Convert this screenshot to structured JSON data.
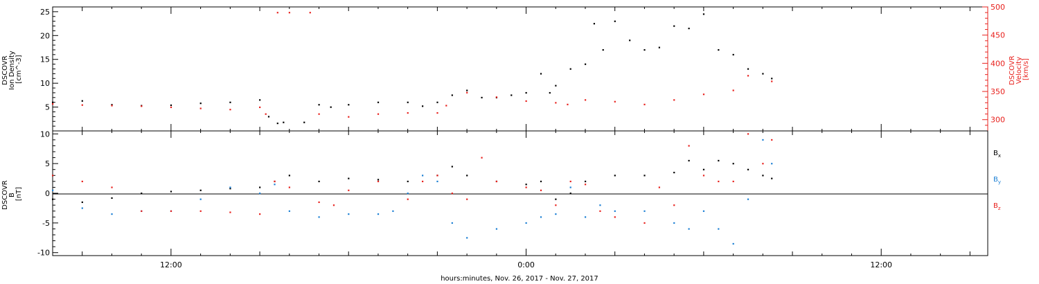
{
  "xlabel": "hours:minutes, Nov. 26, 2017 - Nov. 27, 2017",
  "x_ticks": [
    {
      "hours": 12,
      "label": "12:00"
    },
    {
      "hours": 24,
      "label": "0:00"
    },
    {
      "hours": 36,
      "label": "12:00"
    }
  ],
  "x_range_hours": [
    8.0,
    39.6
  ],
  "colors": {
    "black": "#000000",
    "red": "#e8201c",
    "blue": "#1a7fd4",
    "axis_red": "#e8201c"
  },
  "panel_top": {
    "ylabel_left": [
      "DSCOVR",
      "Ion Density",
      "[cm^-3]"
    ],
    "ylabel_right": [
      "DSCOVR",
      "Velocity",
      "[km/s]"
    ],
    "left_ticks": [
      "25",
      "20",
      "15",
      "10",
      "5"
    ],
    "right_ticks": [
      "500",
      "450",
      "400",
      "350",
      "300"
    ]
  },
  "panel_bottom": {
    "ylabel": [
      "DSCOVR",
      "B",
      "[nT]"
    ],
    "ticks": [
      "10",
      "5",
      "0",
      "-5",
      "-10"
    ],
    "legend": [
      {
        "base": "B",
        "sub": "x",
        "color": "#000000"
      },
      {
        "base": "B",
        "sub": "y",
        "color": "#1a7fd4"
      },
      {
        "base": "B",
        "sub": "z",
        "color": "#e8201c"
      }
    ]
  },
  "chart_data": [
    {
      "type": "scatter",
      "title": "",
      "xlabel": "hours:minutes, Nov. 26, 2017 - Nov. 27, 2017",
      "x_units": "hours since 00:00 Nov. 26, 2017",
      "ylabel": "DSCOVR Ion Density [cm^-3]",
      "ylabel_right": "DSCOVR Velocity [km/s]",
      "ylim": [
        0,
        26
      ],
      "ylim_right": [
        280,
        500
      ],
      "series": [
        {
          "name": "Ion Density",
          "axis": "left",
          "color": "#000000",
          "x": [
            8.0,
            9.0,
            10.0,
            11.0,
            12.0,
            13.0,
            14.0,
            15.0,
            15.3,
            15.6,
            15.8,
            16.5,
            17.0,
            17.4,
            18.0,
            19.0,
            20.0,
            20.5,
            21.0,
            21.5,
            22.0,
            22.5,
            23.0,
            23.5,
            24.0,
            24.5,
            24.8,
            25.0,
            25.5,
            26.0,
            26.3,
            26.6,
            27.0,
            27.5,
            28.0,
            28.5,
            29.0,
            29.5,
            30.0,
            30.5,
            31.0,
            31.5,
            32.0,
            32.3
          ],
          "y": [
            6.0,
            6.3,
            5.5,
            5.3,
            5.4,
            5.8,
            6.0,
            6.5,
            3.0,
            1.6,
            1.8,
            1.8,
            5.5,
            5.0,
            5.5,
            6.0,
            6.0,
            5.2,
            6.0,
            7.5,
            8.5,
            7.0,
            7.0,
            7.5,
            8.0,
            12.0,
            8.0,
            9.5,
            13.0,
            14.0,
            22.5,
            17.0,
            23.0,
            19.0,
            17.0,
            17.5,
            22.0,
            21.5,
            24.5,
            17.0,
            16.0,
            13.0,
            12.0,
            11.0
          ]
        },
        {
          "name": "Velocity",
          "axis": "right",
          "color": "#e8201c",
          "x": [
            8.0,
            9.0,
            10.0,
            11.0,
            12.0,
            13.0,
            14.0,
            15.0,
            15.2,
            15.6,
            16.0,
            16.7,
            17.0,
            18.0,
            19.0,
            20.0,
            21.0,
            21.3,
            22.0,
            23.0,
            24.0,
            25.0,
            25.4,
            26.0,
            27.0,
            28.0,
            29.0,
            30.0,
            31.0,
            31.5,
            32.3
          ],
          "y": [
            328,
            326,
            325,
            324,
            322,
            320,
            318,
            322,
            310,
            490,
            490,
            490,
            310,
            305,
            310,
            312,
            312,
            325,
            348,
            340,
            333,
            330,
            327,
            335,
            332,
            327,
            335,
            345,
            352,
            378,
            368
          ]
        }
      ]
    },
    {
      "type": "scatter",
      "title": "",
      "xlabel": "hours:minutes, Nov. 26, 2017 - Nov. 27, 2017",
      "x_units": "hours since 00:00 Nov. 26, 2017",
      "ylabel": "DSCOVR B [nT]",
      "ylim": [
        -10.5,
        10.5
      ],
      "series": [
        {
          "name": "Bx",
          "color": "#000000",
          "x": [
            8.0,
            9.0,
            10.0,
            11.0,
            12.0,
            13.0,
            14.0,
            15.0,
            15.5,
            16.0,
            17.0,
            18.0,
            19.0,
            20.0,
            21.0,
            21.5,
            22.0,
            23.0,
            24.0,
            24.5,
            25.0,
            25.5,
            26.0,
            27.0,
            28.0,
            29.0,
            29.5,
            30.0,
            30.5,
            31.0,
            31.5,
            32.0,
            32.3
          ],
          "y": [
            -1.0,
            -1.5,
            -0.8,
            0.0,
            0.3,
            0.5,
            0.8,
            1.0,
            2.0,
            3.0,
            2.0,
            2.5,
            2.3,
            2.0,
            3.0,
            4.5,
            3.0,
            2.0,
            1.5,
            2.0,
            -1.0,
            0.0,
            2.0,
            3.0,
            3.0,
            3.5,
            5.5,
            4.0,
            5.5,
            5.0,
            4.0,
            3.0,
            2.5
          ]
        },
        {
          "name": "By",
          "color": "#1a7fd4",
          "x": [
            8.0,
            9.0,
            10.0,
            11.0,
            12.0,
            13.0,
            14.0,
            15.0,
            15.5,
            16.0,
            17.0,
            18.0,
            19.0,
            19.5,
            20.0,
            20.5,
            21.0,
            21.5,
            22.0,
            23.0,
            24.0,
            24.5,
            25.0,
            25.5,
            26.0,
            26.5,
            27.0,
            28.0,
            29.0,
            29.5,
            30.0,
            30.5,
            31.0,
            31.5,
            32.0,
            32.3
          ],
          "y": [
            0.5,
            -2.5,
            -3.5,
            -3.0,
            -3.0,
            -1.0,
            1.0,
            0.0,
            1.5,
            -3.0,
            -4.0,
            -3.5,
            -3.5,
            -3.0,
            0.0,
            3.0,
            2.0,
            -5.0,
            -7.5,
            -6.0,
            -5.0,
            -4.0,
            -3.5,
            1.0,
            -4.0,
            -2.0,
            -3.0,
            -3.0,
            -5.0,
            -6.0,
            -3.0,
            -6.0,
            -8.5,
            -1.0,
            9.0,
            5.0
          ]
        },
        {
          "name": "Bz",
          "color": "#e8201c",
          "x": [
            8.0,
            9.0,
            10.0,
            11.0,
            12.0,
            13.0,
            14.0,
            15.0,
            15.5,
            16.0,
            17.0,
            17.5,
            18.0,
            19.0,
            20.0,
            20.5,
            21.0,
            21.5,
            22.0,
            22.5,
            23.0,
            24.0,
            24.5,
            25.0,
            25.5,
            26.0,
            26.5,
            27.0,
            28.0,
            28.5,
            29.0,
            29.5,
            30.0,
            30.5,
            31.0,
            31.5,
            32.0,
            32.3
          ],
          "y": [
            3.0,
            2.0,
            1.0,
            -3.0,
            -3.0,
            -3.0,
            -3.2,
            -3.5,
            2.0,
            1.0,
            -1.5,
            -2.0,
            0.5,
            2.0,
            -1.0,
            2.0,
            3.0,
            0.0,
            -1.0,
            6.0,
            2.0,
            1.0,
            0.5,
            -2.0,
            2.0,
            1.5,
            -3.0,
            -4.0,
            -5.0,
            1.0,
            -2.0,
            8.0,
            3.0,
            2.0,
            2.0,
            10.0,
            5.0,
            9.0
          ]
        }
      ]
    }
  ]
}
